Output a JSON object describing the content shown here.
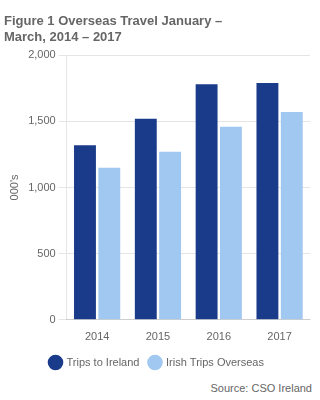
{
  "chart_data": {
    "type": "bar",
    "title": [
      "Figure 1 Overseas Travel January –",
      "March, 2014 – 2017"
    ],
    "categories": [
      "2014",
      "2015",
      "2016",
      "2017"
    ],
    "series": [
      {
        "name": "Trips to Ireland",
        "color": "#1a3a8a",
        "values": [
          1320,
          1520,
          1780,
          1790
        ]
      },
      {
        "name": "Irish Trips Overseas",
        "color": "#a0c8f0",
        "values": [
          1150,
          1270,
          1460,
          1570
        ]
      }
    ],
    "ylabel": "000's",
    "ylim": [
      0,
      2000
    ],
    "yticks": [
      0,
      500,
      1000,
      1500,
      2000
    ],
    "grid": true,
    "legend": "bottom",
    "annotations": [
      "Source: CSO Ireland"
    ]
  }
}
